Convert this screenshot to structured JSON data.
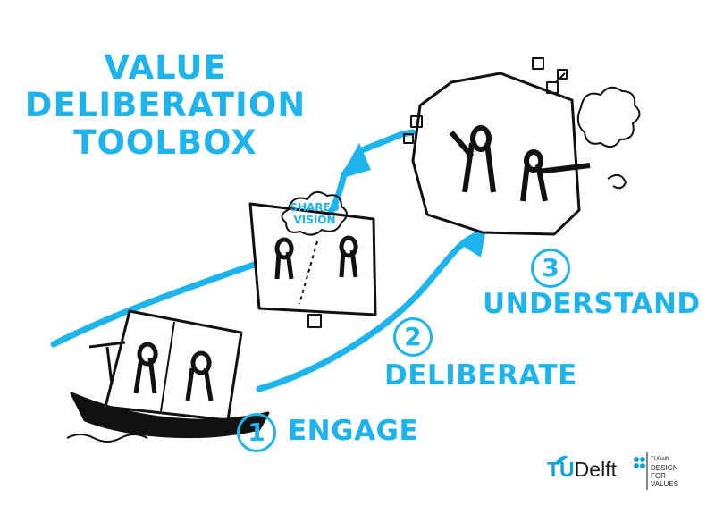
{
  "title": {
    "line1": "VALUE",
    "line2": "DELIBERATION",
    "line3": "TOOLBOX"
  },
  "steps": [
    {
      "number": "1",
      "label": "ENGAGE"
    },
    {
      "number": "2",
      "label": "DELIBERATE"
    },
    {
      "number": "3",
      "label": "UNDERSTAND"
    }
  ],
  "bubble": {
    "line1": "SHARED",
    "line2": "VISION"
  },
  "logos": {
    "tudelft_tu": "TU",
    "tudelft_rest": "Delft",
    "dfv_small": "TUDelft",
    "dfv_line1": "DESIGN",
    "dfv_line2": "FOR",
    "dfv_line3": "VALUES"
  },
  "colors": {
    "accent": "#1db3ec",
    "ink": "#111111"
  }
}
